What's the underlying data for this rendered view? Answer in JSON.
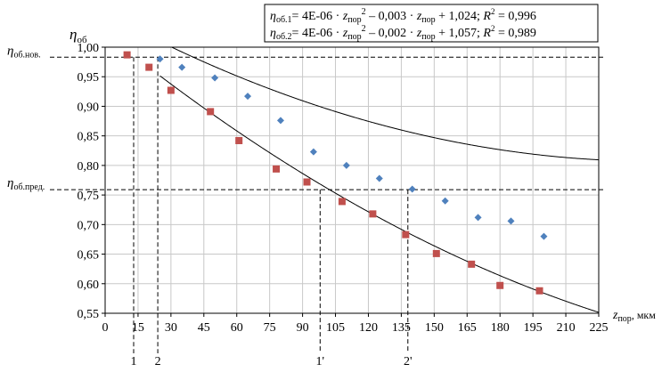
{
  "chart_data": {
    "type": "scatter",
    "xlim": [
      0,
      225
    ],
    "ylim": [
      0.55,
      1.0
    ],
    "x_ticks": [
      0,
      15,
      30,
      45,
      60,
      75,
      90,
      105,
      120,
      135,
      150,
      165,
      180,
      195,
      210,
      225
    ],
    "y_ticks": [
      0.55,
      0.6,
      0.65,
      0.7,
      0.75,
      0.8,
      0.85,
      0.9,
      0.95,
      1.0
    ],
    "x_tick_labels": [
      "0",
      "15",
      "30",
      "45",
      "60",
      "75",
      "90",
      "105",
      "120",
      "135",
      "150",
      "165",
      "180",
      "195",
      "210",
      "225"
    ],
    "y_tick_labels": [
      "0,55",
      "0,60",
      "0,65",
      "0,70",
      "0,75",
      "0,80",
      "0,85",
      "0,90",
      "0,95",
      "1,00"
    ],
    "grid": true,
    "ylabel": {
      "main": "η",
      "sub": "об"
    },
    "xlabel": {
      "main": "z",
      "sub": "пор",
      "unit": ", мкм"
    },
    "equations": [
      {
        "eta": "η",
        "sub": "об.1",
        "body": "= 4E-06 · ",
        "z1": "z",
        "z1sub": "пор",
        "pow": "2",
        "mid": " – 0,003 · ",
        "z2": "z",
        "z2sub": "пор",
        "tail": " + 1,024; ",
        "r": "R",
        "rpow": "2",
        "rval": " = 0,996"
      },
      {
        "eta": "η",
        "sub": "об.2",
        "body": "= 4E-06 · ",
        "z1": "z",
        "z1sub": "пор",
        "pow": "2",
        "mid": " – 0,002 · ",
        "z2": "z",
        "z2sub": "пор",
        "tail": " + 1,057; ",
        "r": "R",
        "rpow": "2",
        "rval": " = 0,989"
      }
    ],
    "series": [
      {
        "marker": "diamond",
        "color": "#4f81bd",
        "points": [
          [
            25,
            0.98
          ],
          [
            35,
            0.966
          ],
          [
            50,
            0.948
          ],
          [
            65,
            0.917
          ],
          [
            80,
            0.876
          ],
          [
            95,
            0.823
          ],
          [
            110,
            0.8
          ],
          [
            125,
            0.778
          ],
          [
            140,
            0.76
          ],
          [
            155,
            0.74
          ],
          [
            170,
            0.712
          ],
          [
            185,
            0.706
          ],
          [
            200,
            0.68
          ]
        ]
      },
      {
        "marker": "square",
        "color": "#c0504d",
        "points": [
          [
            10,
            0.987
          ],
          [
            20,
            0.966
          ],
          [
            30,
            0.927
          ],
          [
            48,
            0.891
          ],
          [
            61,
            0.842
          ],
          [
            78,
            0.794
          ],
          [
            92,
            0.772
          ],
          [
            108,
            0.739
          ],
          [
            122,
            0.718
          ],
          [
            137,
            0.683
          ],
          [
            151,
            0.651
          ],
          [
            167,
            0.633
          ],
          [
            180,
            0.597
          ],
          [
            198,
            0.588
          ]
        ]
      }
    ],
    "trendlines": [
      {
        "a": 4e-06,
        "b": -0.003,
        "c": 1.024,
        "x_range": [
          25,
          225
        ]
      },
      {
        "a": 4e-06,
        "b": -0.002,
        "c": 1.057,
        "x_range": [
          10,
          225
        ]
      }
    ],
    "horizontal_lines": [
      {
        "y": 0.983,
        "label_main": "η",
        "label_sub": "об.нов."
      },
      {
        "y": 0.759,
        "label_main": "η",
        "label_sub": "об.пред."
      }
    ],
    "vertical_markers": [
      {
        "x": 13,
        "y_top": 0.983,
        "label": "1"
      },
      {
        "x": 24,
        "y_top": 0.983,
        "label": "2"
      },
      {
        "x": 98,
        "y_top": 0.759,
        "label": "1'"
      },
      {
        "x": 138,
        "y_top": 0.759,
        "label": "2'"
      }
    ]
  }
}
